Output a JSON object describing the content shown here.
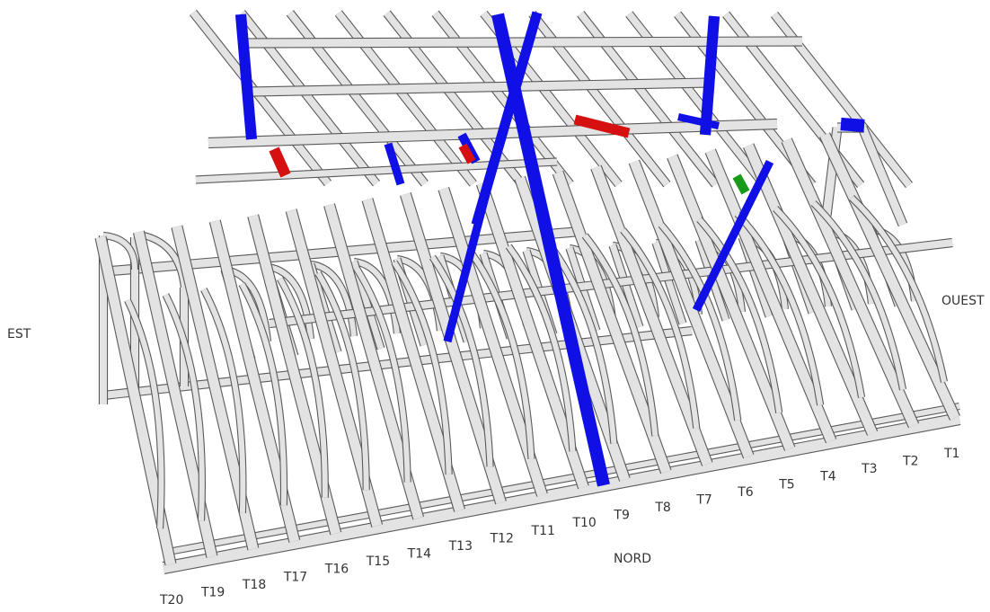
{
  "orientation": {
    "east": "EST",
    "west": "OUEST",
    "north": "NORD"
  },
  "trusses": [
    "T20",
    "T19",
    "T18",
    "T17",
    "T16",
    "T15",
    "T14",
    "T13",
    "T12",
    "T11",
    "T10",
    "T9",
    "T8",
    "T7",
    "T6",
    "T5",
    "T4",
    "T3",
    "T2",
    "T1"
  ],
  "colors": {
    "timber_fill": "#e3e3e3",
    "timber_stroke": "#5a5a5a",
    "highlight_blue": "#1010e6",
    "highlight_red": "#d61010",
    "highlight_green": "#1a9a1a"
  }
}
